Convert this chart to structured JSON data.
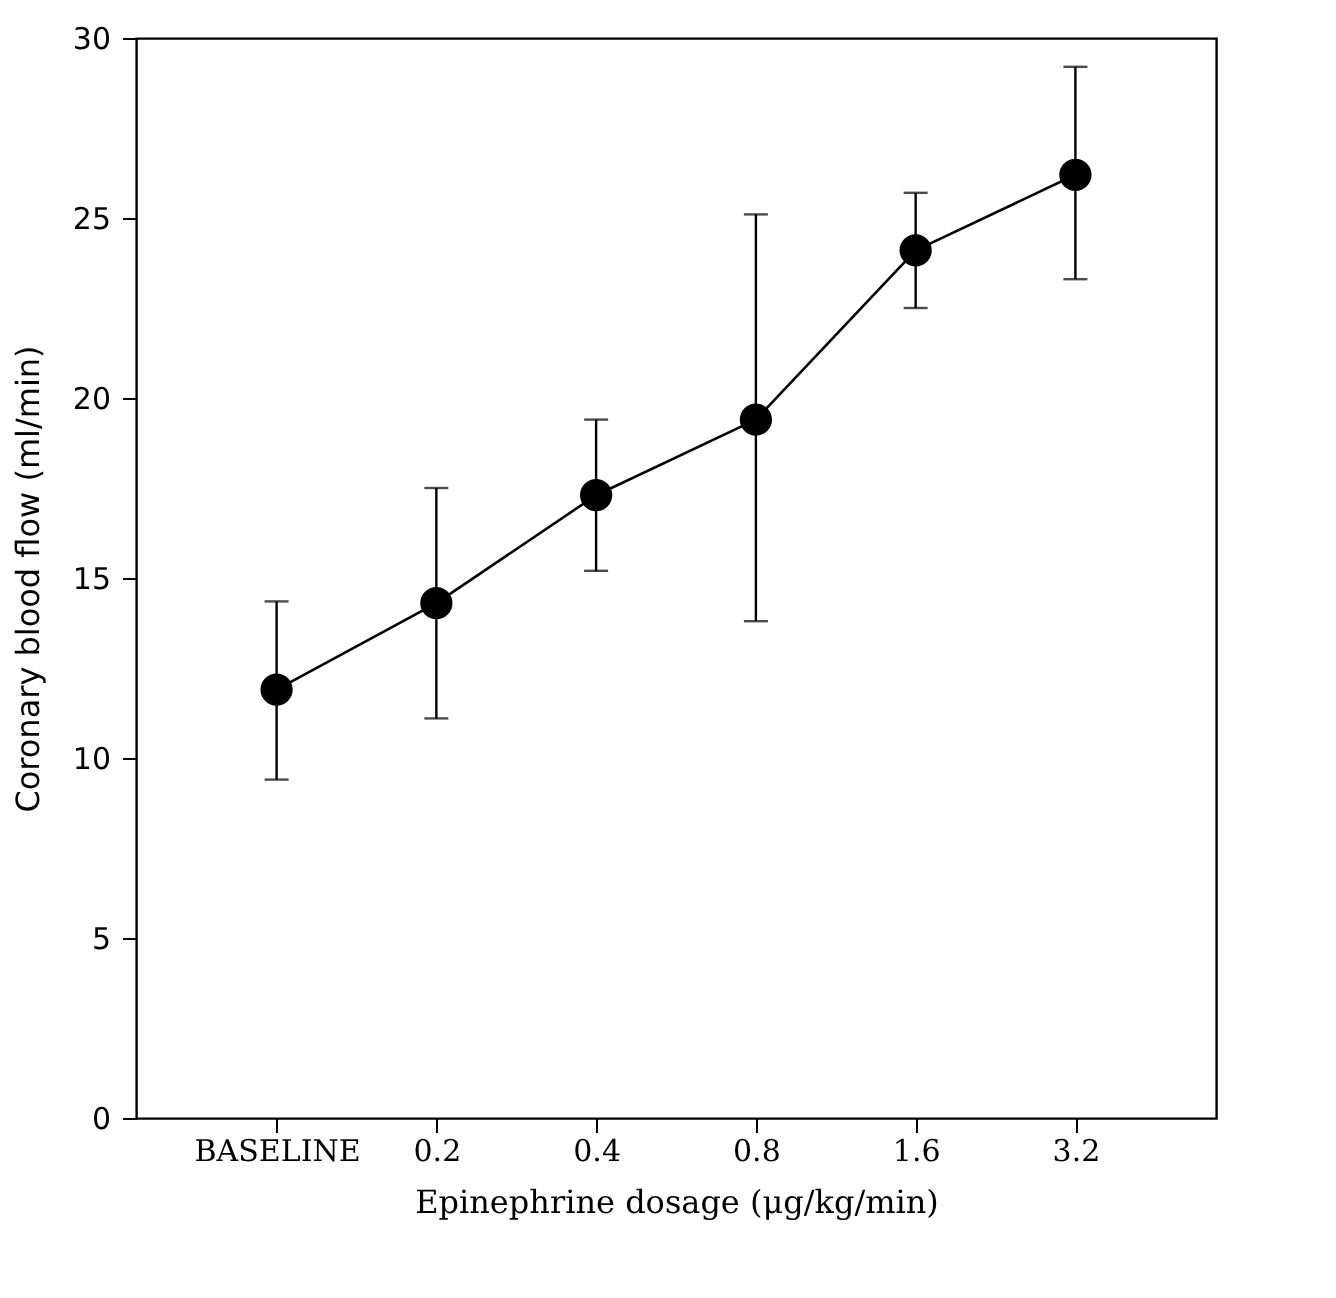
{
  "chart_data": {
    "type": "line",
    "xlabel": "Epinephrine dosage (μg/kg/min)",
    "ylabel": "Coronary blood flow (ml/min)",
    "categories": [
      "BASELINE",
      "0.2",
      "0.4",
      "0.8",
      "1.6",
      "3.2"
    ],
    "series": [
      {
        "color": "#000000",
        "values": [
          11.9,
          14.3,
          17.3,
          19.4,
          24.1,
          26.2
        ],
        "errors": [
          [
            9.4,
            14.35
          ],
          [
            11.1,
            17.5
          ],
          [
            15.2,
            19.4
          ],
          [
            13.8,
            25.1
          ],
          [
            22.5,
            25.7
          ],
          [
            23.3,
            29.2
          ]
        ]
      }
    ],
    "ylim": [
      0,
      30
    ],
    "yticks": [
      0,
      5,
      10,
      15,
      20,
      25,
      30
    ],
    "marker": "circle",
    "line_style": "solid",
    "grid": false
  }
}
